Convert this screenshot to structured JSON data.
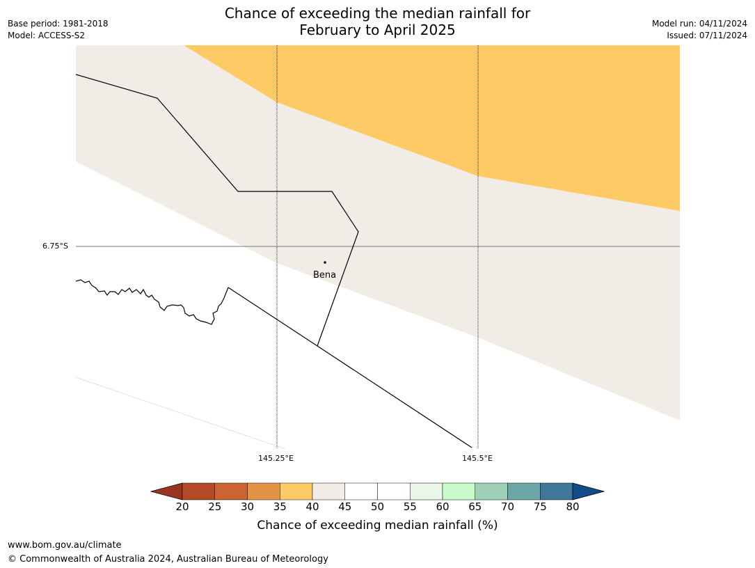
{
  "title": {
    "line1": "Chance of exceeding the median rainfall for",
    "line2": "February to April 2025"
  },
  "meta": {
    "base_period": "Base period: 1981-2018",
    "model": "Model: ACCESS-S2",
    "model_run": "Model run: 04/11/2024",
    "issued": "Issued: 07/11/2024"
  },
  "map": {
    "lat_label": "6.75°S",
    "lon_labels": [
      "145.25°E",
      "145.5°E"
    ],
    "town": "Bena",
    "colors": {
      "band_35_40": "#fdca66",
      "band_40_45": "#f1ece6",
      "band_45_55": "#ffffff"
    }
  },
  "colorbar": {
    "ticks": [
      "20",
      "25",
      "30",
      "35",
      "40",
      "45",
      "50",
      "55",
      "60",
      "65",
      "70",
      "75",
      "80"
    ],
    "colors": [
      "#9b3521",
      "#b24a27",
      "#cb6432",
      "#e29444",
      "#fdca66",
      "#f1ece6",
      "#ffffff",
      "#ffffff",
      "#e9f6e8",
      "#c9fbca",
      "#9ecfb7",
      "#6da6a7",
      "#3f7898",
      "#134c8a"
    ],
    "label": "Chance of exceeding median rainfall (%)"
  },
  "footer": {
    "url": "www.bom.gov.au/climate",
    "copyright": "© Commonwealth of Australia 2024, Australian Bureau of Meteorology"
  }
}
